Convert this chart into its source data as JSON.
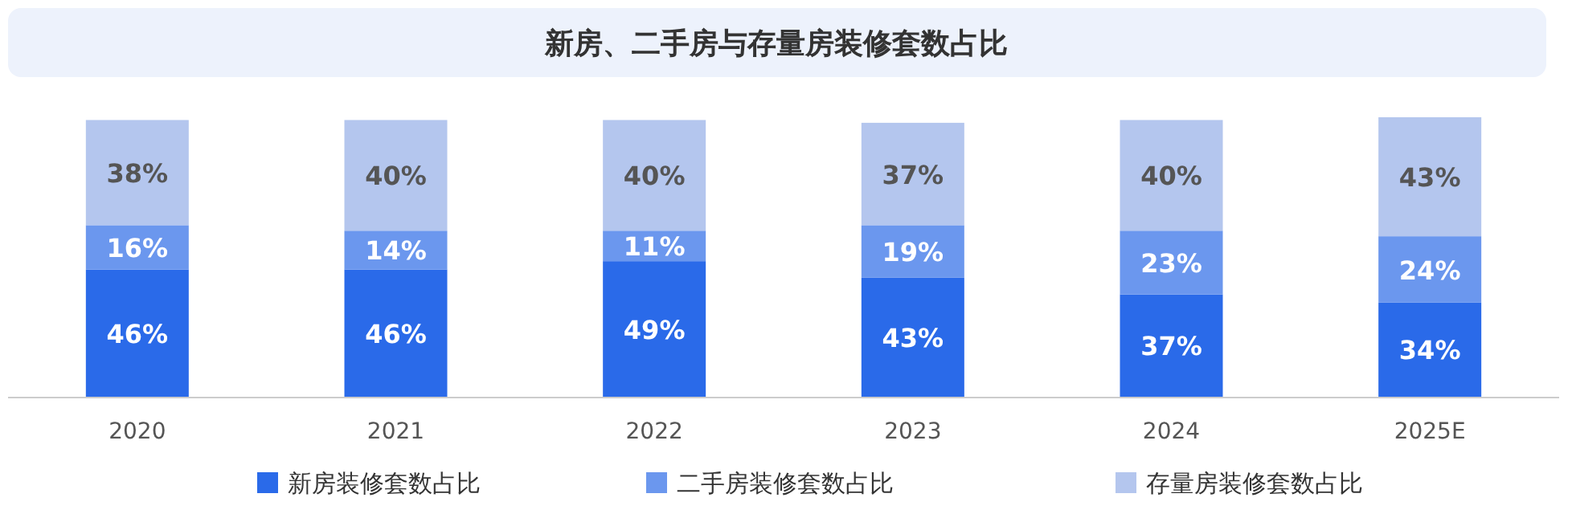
{
  "chart_data": {
    "type": "bar",
    "stacked": true,
    "title": "新房、二手房与存量房装修套数占比",
    "categories": [
      "2020",
      "2021",
      "2022",
      "2023",
      "2024",
      "2025E"
    ],
    "series": [
      {
        "name": "新房装修套数占比",
        "color": "#2a6ae9",
        "values": [
          46,
          46,
          49,
          43,
          37,
          34
        ],
        "value_labels": [
          "46%",
          "46%",
          "49%",
          "43%",
          "37%",
          "34%"
        ]
      },
      {
        "name": "二手房装修套数占比",
        "color": "#6b97ee",
        "values": [
          16,
          14,
          11,
          19,
          23,
          24
        ],
        "value_labels": [
          "16%",
          "14%",
          "11%",
          "19%",
          "23%",
          "24%"
        ]
      },
      {
        "name": "存量房装修套数占比",
        "color": "#b4c6ee",
        "values": [
          38,
          40,
          40,
          37,
          40,
          43
        ],
        "value_labels": [
          "38%",
          "40%",
          "40%",
          "37%",
          "40%",
          "43%"
        ]
      }
    ],
    "legend": "bottom",
    "tick_labels": "x"
  }
}
